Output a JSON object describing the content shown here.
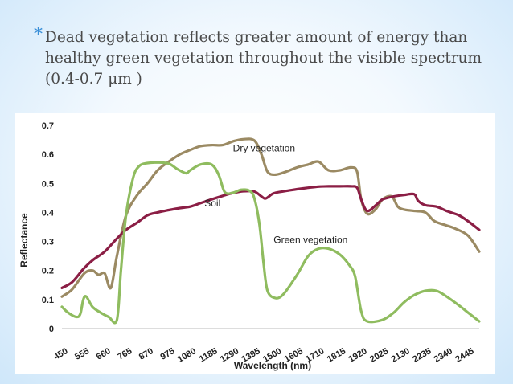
{
  "slide": {
    "bullet_symbol": "*",
    "bullet_text": "Dead vegetation reflects greater amount of energy than healthy green vegetation throughout the visible spectrum (0.4-0.7 μm )"
  },
  "chart_data": {
    "type": "line",
    "title": "",
    "xlabel": "Wavelength (nm)",
    "ylabel": "Reflectance",
    "x_ticks": [
      "450",
      "555",
      "660",
      "765",
      "870",
      "975",
      "1080",
      "1185",
      "1290",
      "1395",
      "1500",
      "1605",
      "1710",
      "1815",
      "1920",
      "2025",
      "2130",
      "2235",
      "2340",
      "2445"
    ],
    "y_ticks": [
      "0",
      "0.1",
      "0.2",
      "0.3",
      "0.4",
      "0.5",
      "0.6",
      "0.7"
    ],
    "xlim": [
      450,
      2500
    ],
    "ylim": [
      0,
      0.7
    ],
    "grid": false,
    "legend": "none (series labelled inline)",
    "series": [
      {
        "name": "Dry vegetation",
        "color": "#9b8a63",
        "label_at": [
          1290,
          0.61
        ],
        "points": [
          [
            450,
            0.11
          ],
          [
            500,
            0.135
          ],
          [
            560,
            0.19
          ],
          [
            600,
            0.2
          ],
          [
            630,
            0.185
          ],
          [
            660,
            0.19
          ],
          [
            690,
            0.14
          ],
          [
            720,
            0.25
          ],
          [
            765,
            0.39
          ],
          [
            820,
            0.46
          ],
          [
            870,
            0.5
          ],
          [
            920,
            0.545
          ],
          [
            975,
            0.575
          ],
          [
            1030,
            0.6
          ],
          [
            1080,
            0.615
          ],
          [
            1130,
            0.628
          ],
          [
            1185,
            0.632
          ],
          [
            1240,
            0.632
          ],
          [
            1290,
            0.645
          ],
          [
            1340,
            0.652
          ],
          [
            1395,
            0.648
          ],
          [
            1430,
            0.6
          ],
          [
            1460,
            0.54
          ],
          [
            1500,
            0.53
          ],
          [
            1550,
            0.54
          ],
          [
            1605,
            0.555
          ],
          [
            1660,
            0.565
          ],
          [
            1710,
            0.575
          ],
          [
            1760,
            0.545
          ],
          [
            1815,
            0.545
          ],
          [
            1870,
            0.555
          ],
          [
            1900,
            0.54
          ],
          [
            1920,
            0.445
          ],
          [
            1950,
            0.395
          ],
          [
            1990,
            0.41
          ],
          [
            2025,
            0.445
          ],
          [
            2070,
            0.455
          ],
          [
            2100,
            0.42
          ],
          [
            2130,
            0.41
          ],
          [
            2180,
            0.405
          ],
          [
            2235,
            0.4
          ],
          [
            2280,
            0.37
          ],
          [
            2340,
            0.355
          ],
          [
            2380,
            0.345
          ],
          [
            2445,
            0.32
          ],
          [
            2500,
            0.265
          ]
        ]
      },
      {
        "name": "Soil",
        "color": "#8b1e45",
        "label_at": [
          1150,
          0.42
        ],
        "points": [
          [
            450,
            0.14
          ],
          [
            500,
            0.16
          ],
          [
            555,
            0.205
          ],
          [
            600,
            0.235
          ],
          [
            660,
            0.265
          ],
          [
            720,
            0.31
          ],
          [
            765,
            0.34
          ],
          [
            820,
            0.365
          ],
          [
            870,
            0.39
          ],
          [
            920,
            0.4
          ],
          [
            975,
            0.408
          ],
          [
            1030,
            0.415
          ],
          [
            1080,
            0.42
          ],
          [
            1130,
            0.432
          ],
          [
            1185,
            0.445
          ],
          [
            1240,
            0.457
          ],
          [
            1290,
            0.467
          ],
          [
            1340,
            0.473
          ],
          [
            1395,
            0.472
          ],
          [
            1430,
            0.455
          ],
          [
            1450,
            0.448
          ],
          [
            1480,
            0.462
          ],
          [
            1500,
            0.468
          ],
          [
            1560,
            0.475
          ],
          [
            1605,
            0.48
          ],
          [
            1660,
            0.485
          ],
          [
            1710,
            0.489
          ],
          [
            1760,
            0.49
          ],
          [
            1815,
            0.49
          ],
          [
            1870,
            0.49
          ],
          [
            1900,
            0.485
          ],
          [
            1920,
            0.445
          ],
          [
            1950,
            0.405
          ],
          [
            2000,
            0.43
          ],
          [
            2025,
            0.445
          ],
          [
            2080,
            0.455
          ],
          [
            2130,
            0.46
          ],
          [
            2180,
            0.463
          ],
          [
            2200,
            0.44
          ],
          [
            2235,
            0.425
          ],
          [
            2290,
            0.42
          ],
          [
            2340,
            0.405
          ],
          [
            2400,
            0.39
          ],
          [
            2445,
            0.37
          ],
          [
            2500,
            0.34
          ]
        ]
      },
      {
        "name": "Green vegetation",
        "color": "#8fbc5f",
        "label_at": [
          1490,
          0.295
        ],
        "points": [
          [
            450,
            0.075
          ],
          [
            480,
            0.055
          ],
          [
            520,
            0.04
          ],
          [
            540,
            0.05
          ],
          [
            555,
            0.1
          ],
          [
            570,
            0.11
          ],
          [
            600,
            0.075
          ],
          [
            640,
            0.055
          ],
          [
            680,
            0.04
          ],
          [
            720,
            0.03
          ],
          [
            740,
            0.2
          ],
          [
            765,
            0.39
          ],
          [
            800,
            0.52
          ],
          [
            830,
            0.56
          ],
          [
            870,
            0.57
          ],
          [
            920,
            0.572
          ],
          [
            975,
            0.568
          ],
          [
            1020,
            0.548
          ],
          [
            1060,
            0.535
          ],
          [
            1080,
            0.545
          ],
          [
            1130,
            0.565
          ],
          [
            1185,
            0.565
          ],
          [
            1220,
            0.53
          ],
          [
            1250,
            0.47
          ],
          [
            1290,
            0.468
          ],
          [
            1330,
            0.478
          ],
          [
            1370,
            0.475
          ],
          [
            1395,
            0.45
          ],
          [
            1420,
            0.36
          ],
          [
            1440,
            0.23
          ],
          [
            1460,
            0.13
          ],
          [
            1500,
            0.105
          ],
          [
            1540,
            0.12
          ],
          [
            1605,
            0.185
          ],
          [
            1660,
            0.25
          ],
          [
            1710,
            0.275
          ],
          [
            1760,
            0.275
          ],
          [
            1815,
            0.255
          ],
          [
            1860,
            0.22
          ],
          [
            1890,
            0.18
          ],
          [
            1920,
            0.06
          ],
          [
            1950,
            0.025
          ],
          [
            2025,
            0.03
          ],
          [
            2080,
            0.055
          ],
          [
            2130,
            0.09
          ],
          [
            2180,
            0.115
          ],
          [
            2235,
            0.13
          ],
          [
            2290,
            0.13
          ],
          [
            2340,
            0.11
          ],
          [
            2400,
            0.08
          ],
          [
            2445,
            0.055
          ],
          [
            2500,
            0.025
          ]
        ]
      }
    ]
  }
}
